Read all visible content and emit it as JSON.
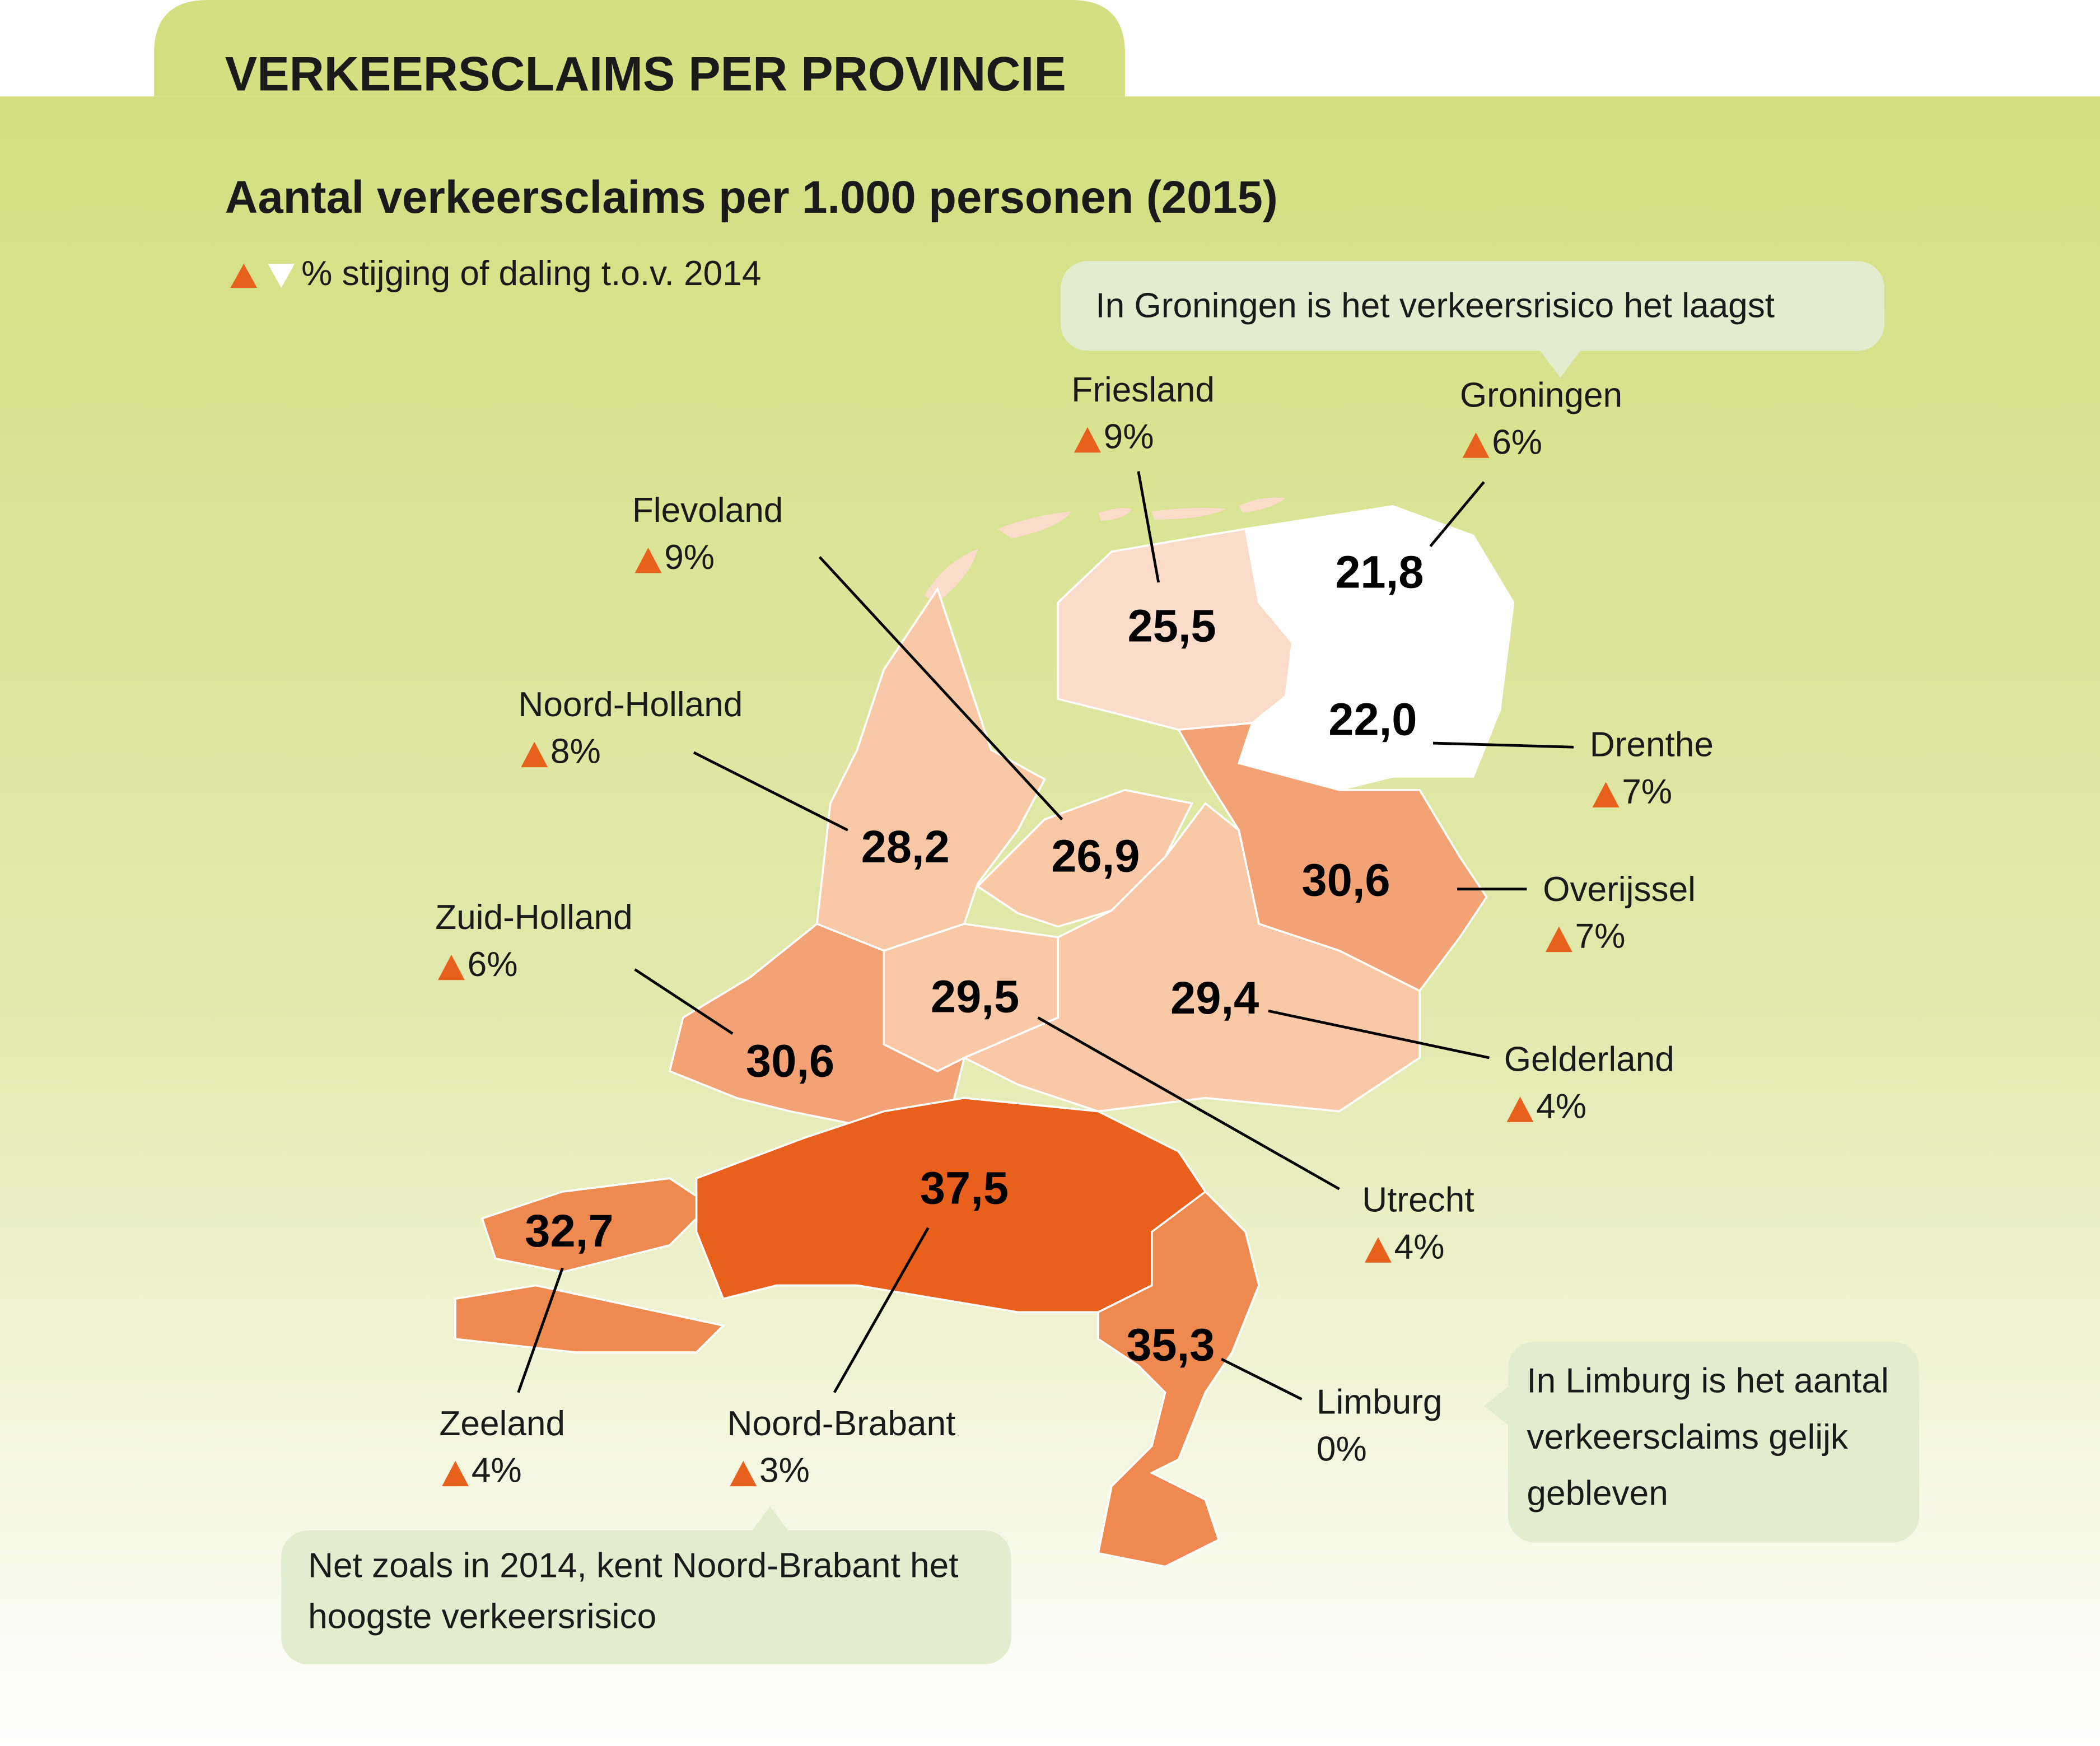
{
  "header": {
    "tab": "VERKEERSCLAIMS PER PROVINCIE",
    "subtitle": "Aantal verkeersclaims per 1.000 personen (2015)",
    "legend": "% stijging of daling t.o.v. 2014"
  },
  "callouts": [
    "In Groningen is het verkeersrisico het laagst",
    "Net zoals in 2014, kent Noord-Brabant het hoogste verkeersrisico",
    "In Limburg is het aantal verkeersclaims gelijk gebleven"
  ],
  "provinces": [
    {
      "name": "Groningen",
      "value": "21,8",
      "change": "6%",
      "trend": "up",
      "color": "#ffffff"
    },
    {
      "name": "Friesland",
      "value": "25,5",
      "change": "9%",
      "trend": "up",
      "color": "#fbdccb"
    },
    {
      "name": "Drenthe",
      "value": "22,0",
      "change": "7%",
      "trend": "up",
      "color": "#ffffff"
    },
    {
      "name": "Flevoland",
      "value": "26,9",
      "change": "9%",
      "trend": "up",
      "color": "#f9c8a6"
    },
    {
      "name": "Noord-Holland",
      "value": "28,2",
      "change": "8%",
      "trend": "up",
      "color": "#f9c8a6"
    },
    {
      "name": "Overijssel",
      "value": "30,6",
      "change": "7%",
      "trend": "up",
      "color": "#f2a275"
    },
    {
      "name": "Zuid-Holland",
      "value": "30,6",
      "change": "6%",
      "trend": "up",
      "color": "#f2a275"
    },
    {
      "name": "Utrecht",
      "value": "29,5",
      "change": "4%",
      "trend": "up",
      "color": "#f9c8a6"
    },
    {
      "name": "Gelderland",
      "value": "29,4",
      "change": "4%",
      "trend": "up",
      "color": "#f9c8a6"
    },
    {
      "name": "Zeeland",
      "value": "32,7",
      "change": "4%",
      "trend": "up",
      "color": "#ee8a4f"
    },
    {
      "name": "Noord-Brabant",
      "value": "37,5",
      "change": "3%",
      "trend": "up",
      "color": "#e95f1c"
    },
    {
      "name": "Limburg",
      "value": "35,3",
      "change": "0%",
      "color": "#ee8a4f"
    }
  ]
}
